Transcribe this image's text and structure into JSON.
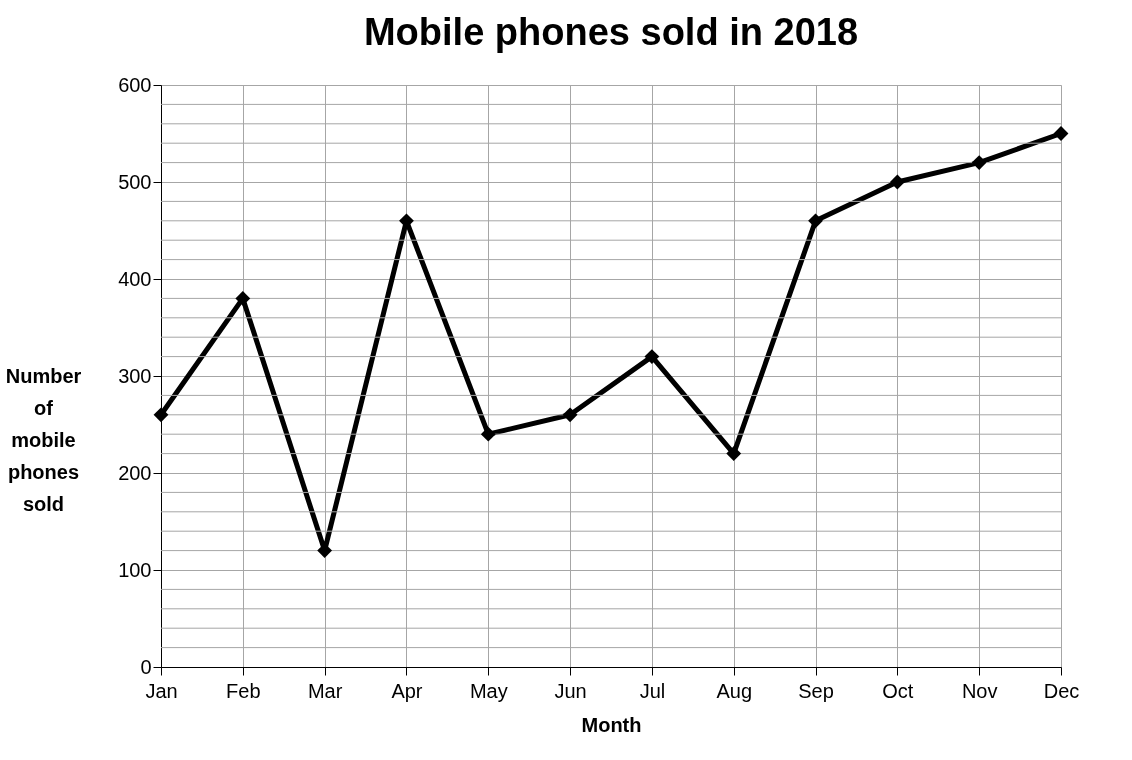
{
  "chart_data": {
    "type": "line",
    "title": "Mobile phones sold in 2018",
    "xlabel": "Month",
    "ylabel": "Number of mobile phones sold",
    "categories": [
      "Jan",
      "Feb",
      "Mar",
      "Apr",
      "May",
      "Jun",
      "Jul",
      "Aug",
      "Sep",
      "Oct",
      "Nov",
      "Dec"
    ],
    "series": [
      {
        "color": "#000000",
        "values": [
          260,
          380,
          120,
          460,
          240,
          260,
          320,
          220,
          460,
          500,
          520,
          550
        ]
      }
    ],
    "ylim": [
      0,
      600
    ],
    "yticks": [
      0,
      100,
      200,
      300,
      400,
      500,
      600
    ],
    "grid": true,
    "marker": "diamond",
    "line_style": "solid"
  }
}
